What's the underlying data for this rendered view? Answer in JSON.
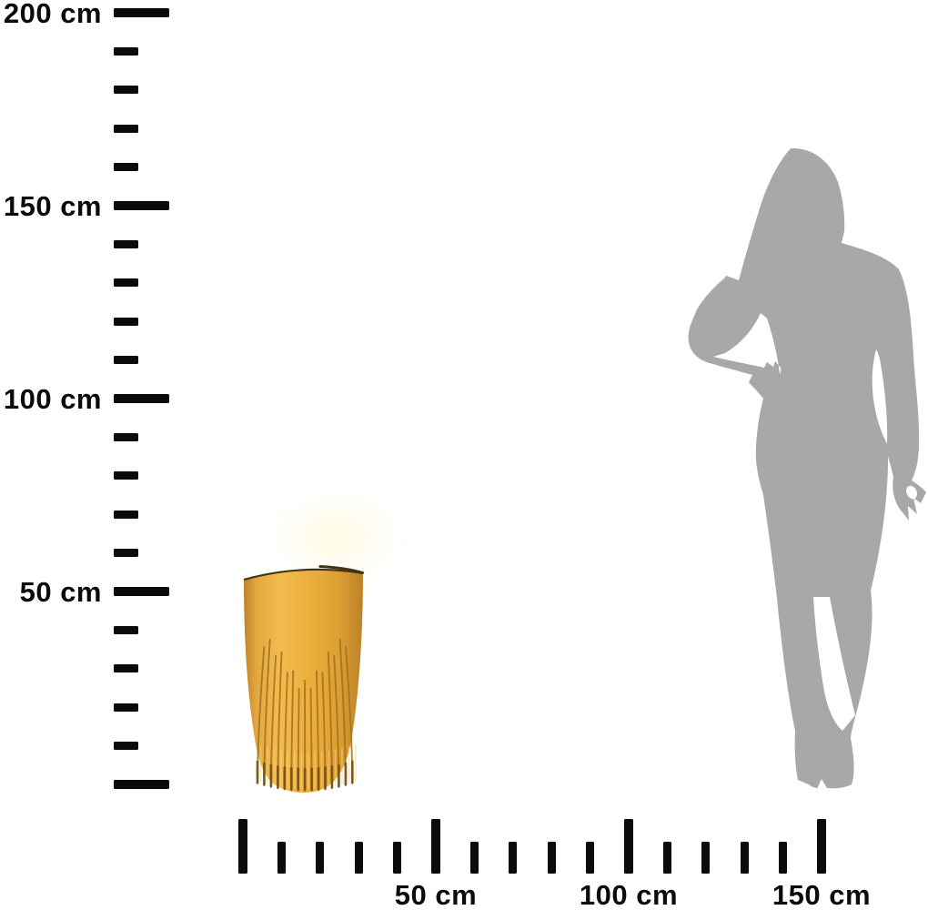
{
  "background": "#FFFFFF",
  "rulers": {
    "tick_color": "#0B0B0B",
    "label_color": "#0B0B0B",
    "vertical": {
      "unit": "cm",
      "min_cm": 0,
      "max_cm": 200,
      "major_step_cm": 50,
      "minor_step_cm": 10,
      "labels": [
        {
          "cm": 200,
          "text": "200 cm"
        },
        {
          "cm": 150,
          "text": "150 cm"
        },
        {
          "cm": 100,
          "text": "100 cm"
        },
        {
          "cm": 50,
          "text": "50 cm"
        }
      ]
    },
    "horizontal": {
      "unit": "cm",
      "min_cm": 0,
      "max_cm": 150,
      "major_step_cm": 50,
      "minor_step_cm": 10,
      "labels": [
        {
          "cm": 50,
          "text": "50 cm"
        },
        {
          "cm": 100,
          "text": "100 cm"
        },
        {
          "cm": 150,
          "text": "150 cm"
        }
      ]
    }
  },
  "objects": {
    "pot": {
      "kind": "fluted-planter",
      "body_color": "#ECAE3C",
      "shadow_color": "#BC8226",
      "groove_color": "#A1711E",
      "deep_groove_color": "#6E4C12",
      "highlight_color": "#F9D37A",
      "rim_color": "#453411"
    },
    "person": {
      "kind": "woman-silhouette",
      "color": "#A8A8A8"
    }
  }
}
